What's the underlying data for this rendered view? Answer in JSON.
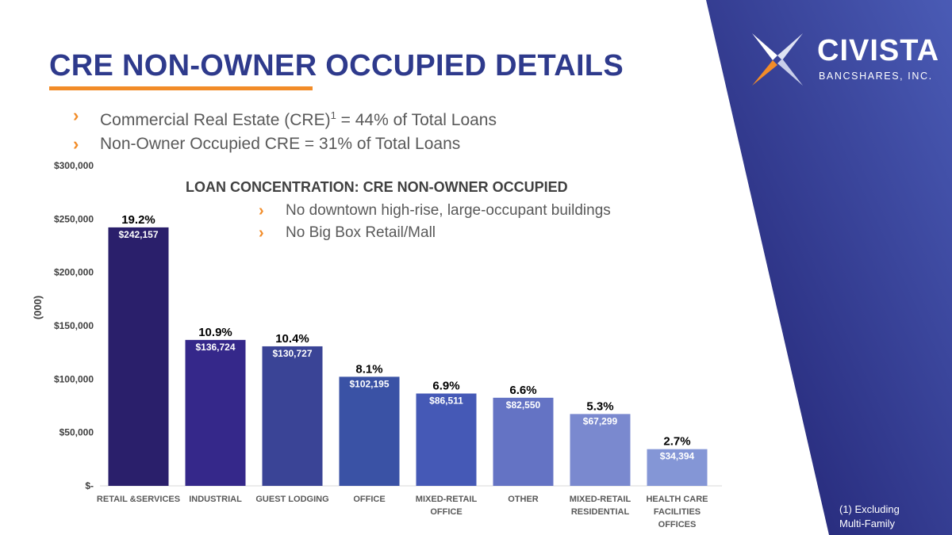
{
  "title": "CRE NON-OWNER OCCUPIED DETAILS",
  "logo": {
    "name": "CIVISTA",
    "sub": "BANCSHARES, INC."
  },
  "bullets": [
    {
      "pre": "Commercial Real Estate (CRE)",
      "sup": "1",
      "post": " = 44% of Total Loans"
    },
    {
      "pre": "Non-Owner Occupied CRE = 31% of Total Loans"
    }
  ],
  "bullet_glyph": "›",
  "subhead": "LOAN CONCENTRATION: CRE NON-OWNER OCCUPIED",
  "sub_bullets": [
    "No downtown high-rise, large-occupant buildings",
    "No Big Box Retail/Mall"
  ],
  "footnote": [
    "(1) Excluding",
    "Multi-Family"
  ],
  "colors": {
    "title": "#2e3a8c",
    "accent": "#f28c28",
    "panel_dark": "#1f1f6e",
    "panel_light": "#4a5bb5"
  },
  "chart_data": {
    "type": "bar",
    "ylabel": "(000)",
    "ylim": [
      0,
      300000
    ],
    "yticks": [
      0,
      50000,
      100000,
      150000,
      200000,
      250000,
      300000
    ],
    "ytick_labels": [
      "$-",
      "$50,000",
      "$100,000",
      "$150,000",
      "$200,000",
      "$250,000",
      "$300,000"
    ],
    "categories": [
      [
        "RETAIL &SERVICES"
      ],
      [
        "INDUSTRIAL"
      ],
      [
        "GUEST LODGING"
      ],
      [
        "OFFICE"
      ],
      [
        "MIXED-RETAIL",
        "OFFICE"
      ],
      [
        "OTHER"
      ],
      [
        "MIXED-RETAIL",
        "RESIDENTIAL"
      ],
      [
        "HEALTH CARE",
        "FACILITIES",
        "OFFICES"
      ]
    ],
    "values": [
      242157,
      136724,
      130727,
      102195,
      86511,
      82550,
      67299,
      34394
    ],
    "value_labels": [
      "$242,157",
      "$136,724",
      "$130,727",
      "$102,195",
      "$86,511",
      "$82,550",
      "$67,299",
      "$34,394"
    ],
    "percent_labels": [
      "19.2%",
      "10.9%",
      "10.4%",
      "8.1%",
      "6.9%",
      "6.6%",
      "5.3%",
      "2.7%"
    ],
    "bar_colors": [
      "#2a1f6b",
      "#35288a",
      "#3a4496",
      "#3a52a5",
      "#4559b6",
      "#6473c4",
      "#7a89cf",
      "#8496d6"
    ],
    "grid": false
  }
}
